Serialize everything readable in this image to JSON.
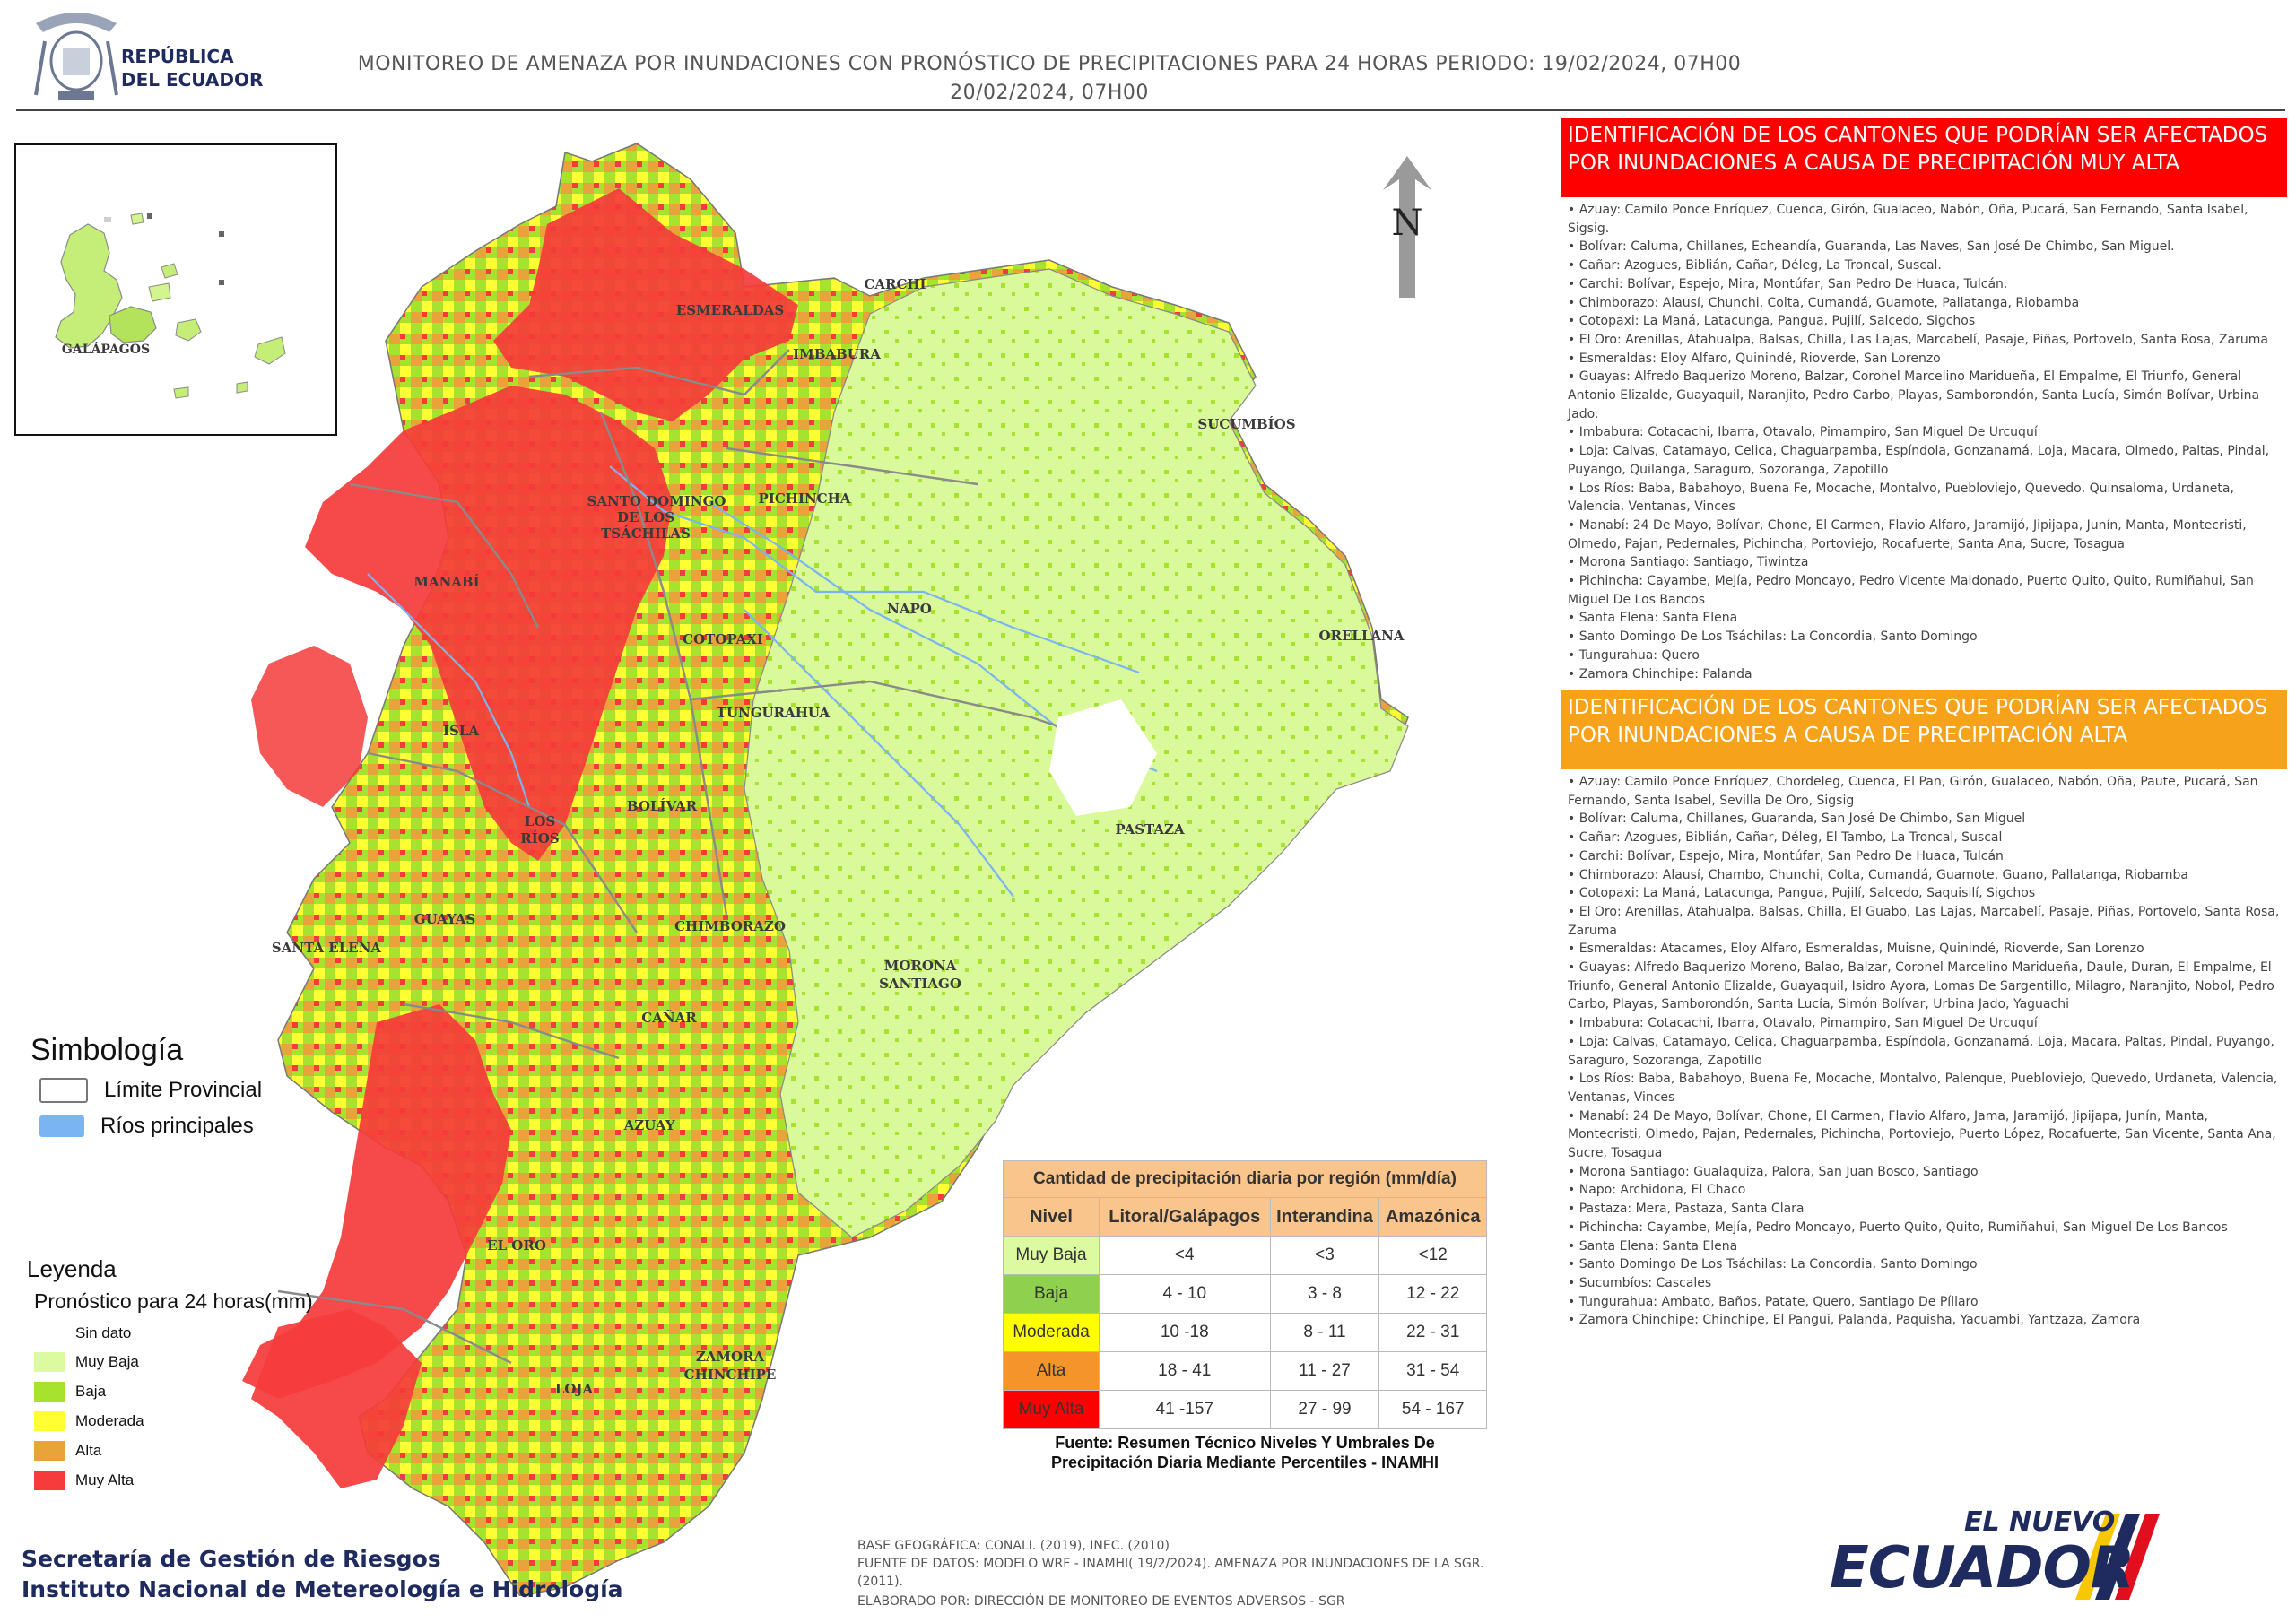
{
  "header": {
    "logo_line1": "REPÚBLICA",
    "logo_line2": "DEL ECUADOR",
    "title_line1": "MONITOREO DE AMENAZA POR INUNDACIONES  CON PRONÓSTICO DE  PRECIPITACIONES PARA 24 HORAS  PERIODO: 19/02/2024, 07H00",
    "title_line2": "20/02/2024, 07H00"
  },
  "inset": {
    "label": "GALÁPAGOS"
  },
  "north_label": "N",
  "map_labels": {
    "esmeraldas": "ESMERALDAS",
    "carchi": "CARCHI",
    "imbabura": "IMBABURA",
    "sucumbios": "SUCUMBÍOS",
    "santo_domingo_1": "SANTO DOMINGO",
    "santo_domingo_2": "DE LOS",
    "santo_domingo_3": "TSÁCHILAS",
    "pichincha": "PICHINCHA",
    "manabi": "MANABÍ",
    "napo": "NAPO",
    "orellana": "ORELLANA",
    "cotopaxi": "COTOPAXI",
    "isla": "ISLA",
    "tungurahua": "TUNGURAHUA",
    "bolivar": "BOLÍVAR",
    "los_rios_1": "LOS",
    "los_rios_2": "RÍOS",
    "pastaza": "PASTAZA",
    "guayas": "GUAYAS",
    "chimborazo": "CHIMBORAZO",
    "santa_elena": "SANTA ELENA",
    "morona_1": "MORONA",
    "morona_2": "SANTIAGO",
    "canar": "CAÑAR",
    "azuay": "AZUAY",
    "el_oro": "EL ORO",
    "loja": "LOJA",
    "zamora_1": "ZAMORA",
    "zamora_2": "CHINCHIPE"
  },
  "simbologia": {
    "title": "Simbología",
    "items": [
      {
        "label": "Límite Provincial",
        "color": "#ffffff"
      },
      {
        "label": "Ríos principales",
        "color": "#7ab4f2"
      }
    ]
  },
  "leyenda": {
    "title": "Leyenda",
    "subtitle": "Pronóstico para 24 horas(mm)",
    "items": [
      {
        "label": "Sin dato",
        "color": "#ffffff"
      },
      {
        "label": "Muy Baja",
        "color": "#dcfaa0"
      },
      {
        "label": "Baja",
        "color": "#a6e22e"
      },
      {
        "label": "Moderada",
        "color": "#ffff33"
      },
      {
        "label": "Alta",
        "color": "#e8a33a"
      },
      {
        "label": "Muy Alta",
        "color": "#f53b3b"
      }
    ]
  },
  "very_high_panel": {
    "header": "IDENTIFICACIÓN DE LOS CANTONES QUE PODRÍAN SER AFECTADOS POR INUNDACIONES  A CAUSA DE PRECIPITACIÓN MUY ALTA",
    "color": "#ff0000",
    "items": [
      "Azuay: Camilo Ponce Enríquez, Cuenca, Girón, Gualaceo, Nabón, Oña, Pucará, San Fernando, Santa Isabel, Sigsig.",
      "Bolívar: Caluma, Chillanes, Echeandía, Guaranda, Las Naves, San José De Chimbo, San Miguel.",
      "Cañar: Azogues, Biblián, Cañar, Déleg, La Troncal, Suscal.",
      "Carchi: Bolívar, Espejo, Mira, Montúfar, San Pedro De Huaca, Tulcán.",
      "Chimborazo: Alausí, Chunchi, Colta, Cumandá, Guamote, Pallatanga, Riobamba",
      "Cotopaxi: La Maná, Latacunga, Pangua, Pujilí, Salcedo, Sigchos",
      "El Oro: Arenillas, Atahualpa, Balsas, Chilla, Las Lajas, Marcabelí, Pasaje, Piñas, Portovelo, Santa Rosa, Zaruma",
      "Esmeraldas: Eloy Alfaro, Quinindé, Rioverde, San Lorenzo",
      "Guayas: Alfredo Baquerizo Moreno, Balzar, Coronel Marcelino Maridueña, El Empalme, El Triunfo, General Antonio Elizalde, Guayaquil, Naranjito, Pedro Carbo, Playas, Samborondón, Santa Lucía, Simón Bolívar, Urbina Jado.",
      "Imbabura: Cotacachi, Ibarra, Otavalo, Pimampiro, San Miguel De Urcuquí",
      "Loja: Calvas, Catamayo, Celica, Chaguarpamba, Espíndola, Gonzanamá, Loja, Macara, Olmedo, Paltas, Pindal, Puyango, Quilanga, Saraguro, Sozoranga, Zapotillo",
      "Los Ríos: Baba, Babahoyo, Buena Fe, Mocache, Montalvo, Puebloviejo, Quevedo, Quinsaloma, Urdaneta, Valencia, Ventanas, Vinces",
      "Manabí: 24 De Mayo, Bolívar, Chone, El Carmen, Flavio Alfaro, Jaramijó, Jipijapa, Junín, Manta, Montecristi, Olmedo, Pajan, Pedernales, Pichincha, Portoviejo, Rocafuerte, Santa Ana, Sucre, Tosagua",
      "Morona Santiago: Santiago, Tiwintza",
      "Pichincha: Cayambe, Mejía, Pedro Moncayo, Pedro Vicente Maldonado, Puerto Quito, Quito, Rumiñahui, San Miguel De Los Bancos",
      "Santa Elena: Santa Elena",
      "Santo Domingo De Los Tsáchilas: La Concordia, Santo Domingo",
      "Tungurahua: Quero",
      "Zamora Chinchipe: Palanda"
    ]
  },
  "high_panel": {
    "header": "IDENTIFICACIÓN DE LOS CANTONES QUE  PODRÍAN SER AFECTADOS POR INUNDACIONES  A CAUSA DE PRECIPITACIÓN  ALTA",
    "color": "#f7a21b",
    "items": [
      "Azuay: Camilo Ponce Enríquez, Chordeleg, Cuenca, El Pan, Girón, Gualaceo, Nabón, Oña, Paute, Pucará, San Fernando, Santa Isabel, Sevilla De Oro, Sigsig",
      "Bolívar: Caluma, Chillanes, Guaranda, San José De Chimbo, San Miguel",
      "Cañar: Azogues, Biblián, Cañar, Déleg, El Tambo, La Troncal, Suscal",
      "Carchi: Bolívar, Espejo, Mira, Montúfar, San Pedro De Huaca, Tulcán",
      "Chimborazo: Alausí, Chambo, Chunchi, Colta, Cumandá, Guamote, Guano, Pallatanga, Riobamba",
      "Cotopaxi: La Maná, Latacunga, Pangua, Pujilí, Salcedo, Saquisilí, Sigchos",
      "El Oro: Arenillas, Atahualpa, Balsas, Chilla, El Guabo, Las Lajas, Marcabelí, Pasaje, Piñas, Portovelo, Santa Rosa, Zaruma",
      "Esmeraldas: Atacames, Eloy Alfaro, Esmeraldas, Muisne, Quinindé, Rioverde, San Lorenzo",
      "Guayas: Alfredo Baquerizo Moreno, Balao, Balzar, Coronel Marcelino Maridueña, Daule, Duran, El Empalme, El Triunfo, General Antonio Elizalde, Guayaquil, Isidro Ayora, Lomas De Sargentillo, Milagro, Naranjito, Nobol, Pedro Carbo, Playas, Samborondón, Santa Lucía, Simón Bolívar, Urbina Jado, Yaguachi",
      "Imbabura: Cotacachi, Ibarra, Otavalo, Pimampiro, San Miguel De Urcuquí",
      "Loja: Calvas, Catamayo, Celica, Chaguarpamba, Espíndola, Gonzanamá, Loja, Macara, Paltas, Pindal, Puyango, Saraguro, Sozoranga, Zapotillo",
      "Los Ríos: Baba, Babahoyo, Buena Fe, Mocache, Montalvo, Palenque, Puebloviejo, Quevedo, Urdaneta, Valencia, Ventanas, Vinces",
      "Manabí: 24 De Mayo, Bolívar, Chone, El Carmen, Flavio Alfaro, Jama, Jaramijó, Jipijapa, Junín, Manta, Montecristi, Olmedo, Pajan, Pedernales, Pichincha, Portoviejo, Puerto López, Rocafuerte, San Vicente, Santa Ana, Sucre, Tosagua",
      "Morona Santiago: Gualaquiza, Palora, San Juan Bosco, Santiago",
      "Napo: Archidona, El Chaco",
      "Pastaza: Mera, Pastaza, Santa Clara",
      "Pichincha: Cayambe, Mejía, Pedro Moncayo, Puerto Quito, Quito, Rumiñahui, San Miguel De Los Bancos",
      "Santa Elena: Santa Elena",
      "Santo Domingo De Los Tsáchilas: La Concordia, Santo Domingo",
      "Sucumbíos: Cascales",
      "Tungurahua: Ambato, Baños, Patate, Quero, Santiago De Píllaro",
      "Zamora Chinchipe: Chinchipe, El Pangui, Palanda, Paquisha, Yacuambi, Yantzaza, Zamora"
    ]
  },
  "precip_table": {
    "caption": "Cantidad de precipitación diaria por región (mm/día)",
    "headers": [
      "Nivel",
      "Litoral/Galápagos",
      "Interandina",
      "Amazónica"
    ],
    "rows": [
      {
        "nivel": "Muy Baja",
        "color": "#dcfaa0",
        "litoral": "<4",
        "interandina": "<3",
        "amazonica": "<12"
      },
      {
        "nivel": "Baja",
        "color": "#8fd14f",
        "litoral": "4 - 10",
        "interandina": "3 - 8",
        "amazonica": "12 - 22"
      },
      {
        "nivel": "Moderada",
        "color": "#ffff00",
        "litoral": "10 -18",
        "interandina": "8 - 11",
        "amazonica": "22 - 31"
      },
      {
        "nivel": "Alta",
        "color": "#f5942a",
        "litoral": "18 - 41",
        "interandina": "11 - 27",
        "amazonica": "31 - 54"
      },
      {
        "nivel": "Muy Alta",
        "color": "#ff0000",
        "litoral": "41 -157",
        "interandina": "27 - 99",
        "amazonica": "54 - 167"
      }
    ],
    "source": "Fuente: Resumen Técnico Niveles Y Umbrales De Precipitación Diaria Mediante Percentiles - INAMHI"
  },
  "footer": {
    "org_line1": "Secretaría de Gestión de Riesgos",
    "org_line2": "Instituto Nacional de Metereología e Hidrología",
    "credit1": "BASE GEOGRÁFICA: CONALI. (2019), INEC. (2010)",
    "credit2": "FUENTE DE DATOS: MODELO WRF - INAMHI( 19/2/2024).  AMENAZA POR INUNDACIONES DE LA SGR. (2011).",
    "credit3": "ELABORADO POR: DIRECCIÓN DE MONITOREO DE EVENTOS ADVERSOS - SGR",
    "brand_top": "EL NUEVO",
    "brand_main": "ECUADOR"
  }
}
